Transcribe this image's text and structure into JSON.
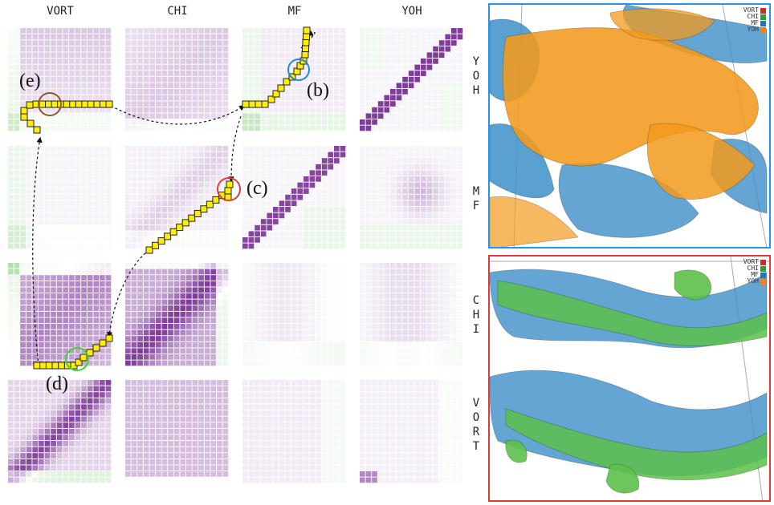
{
  "columns": [
    "VORT",
    "CHI",
    "MF",
    "YOH"
  ],
  "rows": [
    "YOH",
    "MF",
    "CHI",
    "VORT"
  ],
  "annotations": {
    "b": "(b)",
    "c": "(c)",
    "d": "(d)",
    "e": "(e)"
  },
  "legend": [
    {
      "name": "VORT",
      "color": "#d62728"
    },
    {
      "name": "CHI",
      "color": "#2ca02c"
    },
    {
      "name": "MF",
      "color": "#1f77b4"
    },
    {
      "name": "YOH",
      "color": "#ff7f0e"
    }
  ],
  "colors": {
    "purple": "#6a1b8a",
    "green": "#8fd18a",
    "path_fill": "#ffee00",
    "top_panel_border": "#2196f3",
    "bottom_panel_border": "#e53935",
    "circle_b": "#1e88e5",
    "circle_c": "#e53935",
    "circle_d": "#43d13b",
    "circle_e": "#8b5a2b",
    "yoh_surface": "#f29a1c",
    "mf_surface": "#3d8fc8",
    "chi_surface": "#5cc04a"
  }
}
